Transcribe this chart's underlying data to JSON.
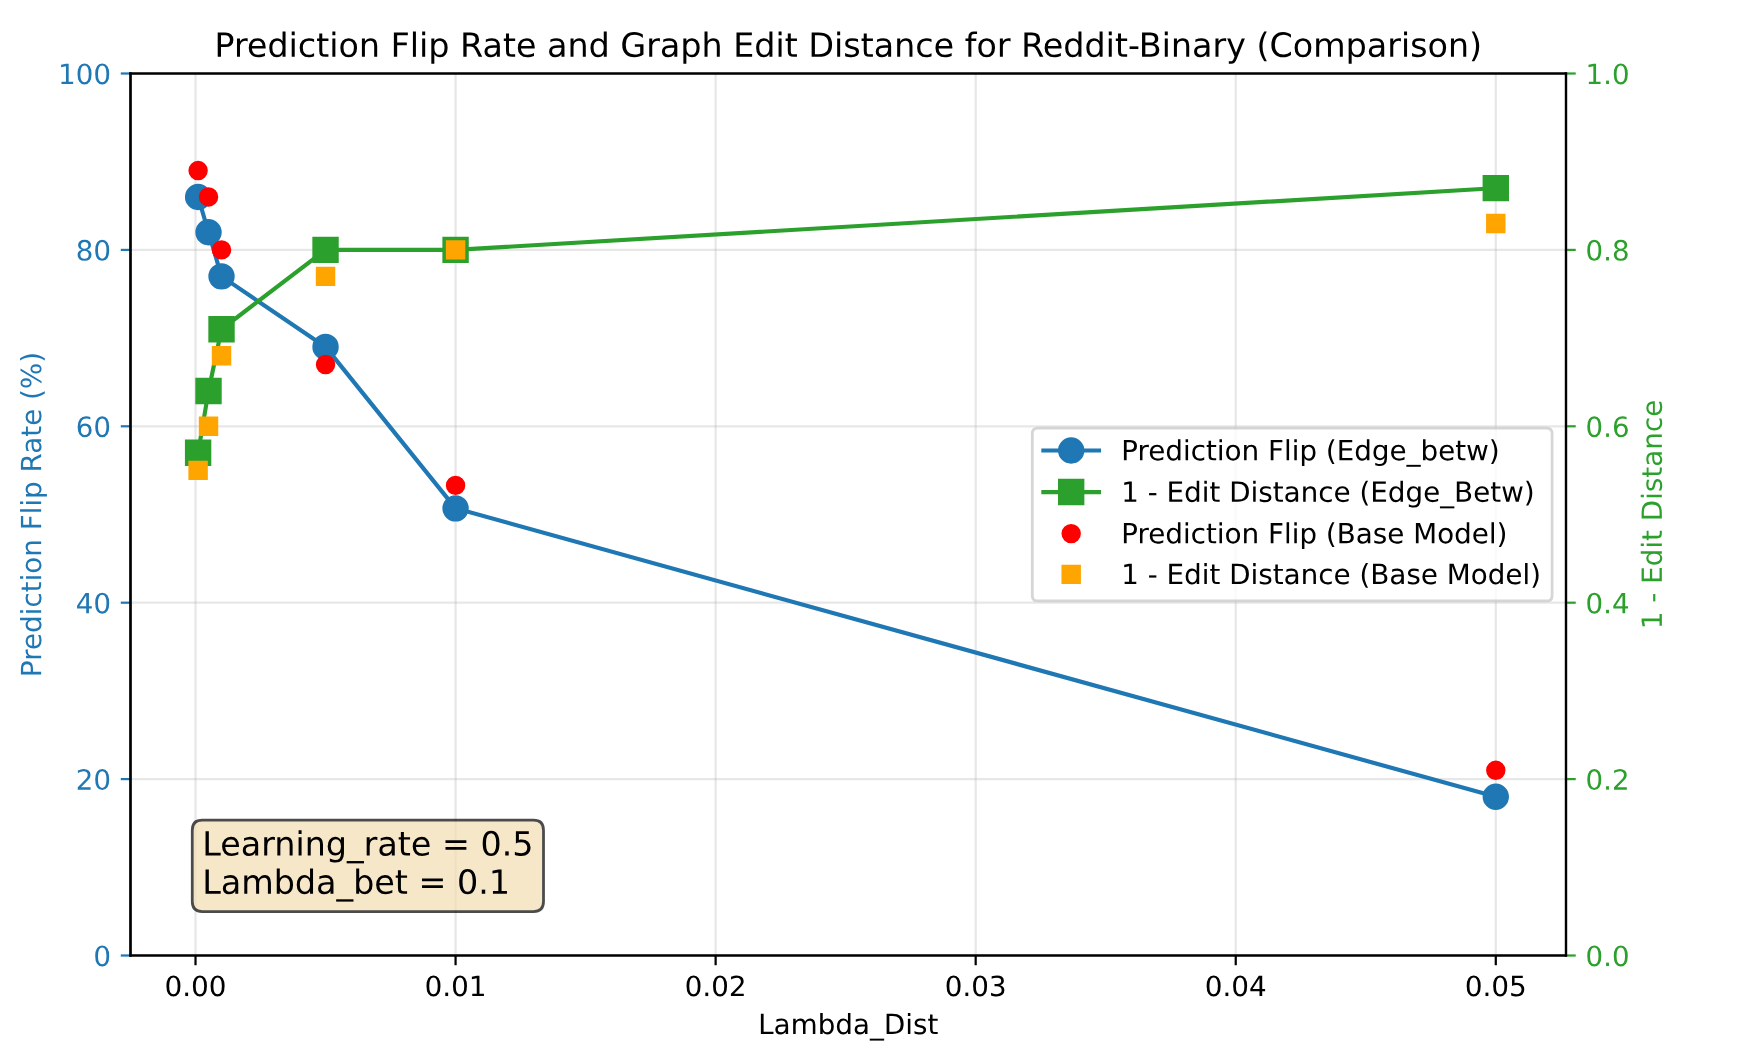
{
  "chart_data": {
    "type": "line",
    "title": "Prediction Flip Rate and Graph Edit Distance for Reddit-Binary (Comparison)",
    "xlabel": "Lambda_Dist",
    "ylabel": "Prediction Flip Rate (%)",
    "y2label": "1 - Edit Distance",
    "x": [
      0.0001,
      0.0005,
      0.001,
      0.005,
      0.01,
      0.05
    ],
    "series": [
      {
        "name": "Prediction Flip (Edge_betw)",
        "color": "#1f77b4",
        "marker": "circle",
        "values": [
          86,
          82,
          77,
          69,
          50.7,
          18
        ]
      },
      {
        "name": "1 - Edit Distance (Edge_Betw)",
        "color": "#2ca02c",
        "marker": "square",
        "axis": "y2",
        "values": [
          0.57,
          0.64,
          0.71,
          0.8,
          0.8,
          0.87
        ]
      },
      {
        "name": "Prediction Flip (Base Model)",
        "type": "scatter",
        "color": "#ff0000",
        "marker": "circle",
        "values": [
          89,
          86,
          80,
          67,
          53.3,
          21
        ]
      },
      {
        "name": "1 - Edit Distance (Base Model)",
        "type": "scatter",
        "color": "#ffa500",
        "marker": "square",
        "axis": "y2",
        "values": [
          0.55,
          0.6,
          0.68,
          0.77,
          0.8,
          0.83
        ]
      }
    ],
    "xlim": [
      -0.0025,
      0.0527
    ],
    "xticks": [
      {
        "value": 0,
        "label": "0.00"
      },
      {
        "value": 0.01,
        "label": "0.01"
      },
      {
        "value": 0.02,
        "label": "0.02"
      },
      {
        "value": 0.03,
        "label": "0.03"
      },
      {
        "value": 0.04,
        "label": "0.04"
      },
      {
        "value": 0.05,
        "label": "0.05"
      }
    ],
    "ylim": [
      0,
      100
    ],
    "yticks": [
      0,
      20,
      40,
      60,
      80,
      100
    ],
    "y2lim": [
      0,
      1
    ],
    "y2ticks": [
      {
        "value": 0,
        "label": "0.0"
      },
      {
        "value": 0.2,
        "label": "0.2"
      },
      {
        "value": 0.4,
        "label": "0.4"
      },
      {
        "value": 0.6,
        "label": "0.6"
      },
      {
        "value": 0.8,
        "label": "0.8"
      },
      {
        "value": 1,
        "label": "1.0"
      }
    ],
    "grid": true,
    "legend": "right",
    "annotations": [
      "Learning_rate = 0.5\nLambda_bet = 0.1"
    ]
  }
}
